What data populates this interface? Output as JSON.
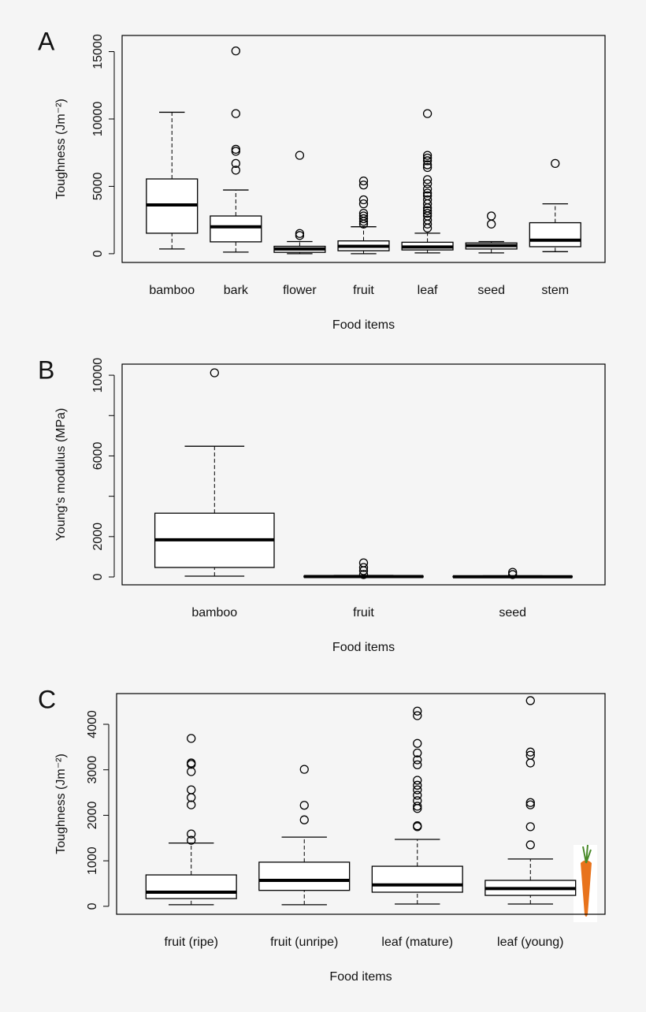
{
  "chart_data": [
    {
      "type": "box",
      "panel_label": "A",
      "x_label": "Food items",
      "y_label": "Toughness (Jm⁻²)",
      "categories": [
        "bamboo",
        "bark",
        "flower",
        "fruit",
        "leaf",
        "seed",
        "stem"
      ],
      "boxes": [
        {
          "whislo": 350,
          "q1": 1520,
          "med": 3620,
          "q3": 5550,
          "whishi": 10500,
          "fliers": []
        },
        {
          "whislo": 120,
          "q1": 880,
          "med": 2000,
          "q3": 2800,
          "whishi": 4730,
          "fliers": [
            15050,
            10400,
            7750,
            7600,
            6700,
            6200
          ]
        },
        {
          "whislo": 0,
          "q1": 100,
          "med": 350,
          "q3": 550,
          "whishi": 900,
          "fliers": [
            7300,
            1500,
            1350
          ]
        },
        {
          "whislo": 0,
          "q1": 220,
          "med": 550,
          "q3": 950,
          "whishi": 2000,
          "fliers": [
            5400,
            5100,
            4000,
            3700,
            3000,
            2800,
            2600,
            2400,
            2200
          ]
        },
        {
          "whislo": 60,
          "q1": 280,
          "med": 500,
          "q3": 850,
          "whishi": 1520,
          "fliers": [
            10400,
            7300,
            7100,
            6900,
            6600,
            6400,
            5500,
            5200,
            4800,
            4500,
            4300,
            4000,
            3700,
            3400,
            3200,
            3000,
            2800,
            2500,
            2200,
            1900
          ]
        },
        {
          "whislo": 60,
          "q1": 350,
          "med": 600,
          "q3": 800,
          "whishi": 900,
          "fliers": [
            2800,
            2200
          ]
        },
        {
          "whislo": 150,
          "q1": 520,
          "med": 1000,
          "q3": 2300,
          "whishi": 3700,
          "fliers": [
            6700
          ]
        }
      ],
      "ylim": [
        -650,
        16200
      ],
      "yticks": [
        0,
        5000,
        10000,
        15000
      ]
    },
    {
      "type": "box",
      "panel_label": "B",
      "x_label": "Food items",
      "y_label": "Young's modulus (MPa)",
      "categories": [
        "bamboo",
        "fruit",
        "seed"
      ],
      "boxes": [
        {
          "whislo": 40,
          "q1": 470,
          "med": 1840,
          "q3": 3160,
          "whishi": 6480,
          "fliers": [
            10120
          ]
        },
        {
          "whislo": 0,
          "q1": 0,
          "med": 20,
          "q3": 40,
          "whishi": 80,
          "fliers": [
            700,
            470,
            310,
            120
          ]
        },
        {
          "whislo": 0,
          "q1": 0,
          "med": 10,
          "q3": 30,
          "whishi": 60,
          "fliers": [
            230,
            120
          ]
        }
      ],
      "ylim": [
        -390,
        10550
      ],
      "yticks": [
        0,
        2000,
        6000,
        10000
      ],
      "yminor_ticks": [
        4000,
        8000
      ]
    },
    {
      "type": "box",
      "panel_label": "C",
      "x_label": "Food items",
      "y_label": "Toughness (Jm⁻²)",
      "categories": [
        "fruit (ripe)",
        "fruit (unripe)",
        "leaf (mature)",
        "leaf (young)"
      ],
      "boxes": [
        {
          "whislo": 35,
          "q1": 170,
          "med": 310,
          "q3": 690,
          "whishi": 1390,
          "fliers": [
            3690,
            3150,
            3120,
            2960,
            2560,
            2390,
            2230,
            1590,
            1450
          ]
        },
        {
          "whislo": 35,
          "q1": 350,
          "med": 570,
          "q3": 970,
          "whishi": 1520,
          "fliers": [
            3010,
            2220,
            1900
          ]
        },
        {
          "whislo": 50,
          "q1": 310,
          "med": 470,
          "q3": 880,
          "whishi": 1470,
          "fliers": [
            4290,
            4190,
            3580,
            3370,
            3220,
            3110,
            2770,
            2660,
            2560,
            2440,
            2320,
            2200,
            2150,
            1770,
            1750
          ]
        },
        {
          "whislo": 50,
          "q1": 240,
          "med": 390,
          "q3": 570,
          "whishi": 1040,
          "fliers": [
            4520,
            3390,
            3320,
            3150,
            2280,
            2230,
            1750,
            1350
          ]
        }
      ],
      "ylim": [
        -175,
        4675
      ],
      "yticks": [
        0,
        1000,
        2000,
        3000,
        4000
      ]
    }
  ]
}
